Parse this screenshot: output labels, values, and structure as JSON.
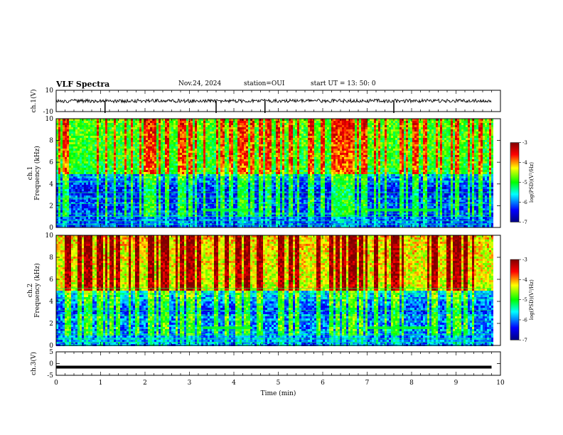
{
  "header": {
    "title": "VLF Spectra",
    "date": "Nov.24, 2024",
    "station": "station=OUI",
    "start_ut": "start  UT  =   13: 50: 0"
  },
  "chart_data": [
    {
      "type": "line",
      "panel": "ch1-waveform",
      "ylabel": "ch.1(V)",
      "ylim": [
        -10,
        10
      ],
      "yticks": [
        10,
        -10
      ],
      "xlim": [
        0,
        10
      ],
      "x": [
        0,
        1.1,
        1.6,
        3.6,
        4.7,
        7.6,
        9.8
      ],
      "y": [
        0,
        -2.5,
        0,
        -2.5,
        -2.5,
        -2.5,
        0
      ],
      "description_values": "baseline noise near 0 V with spikes at x≈1.1, 3.6, 4.7, 7.6 min"
    },
    {
      "type": "heatmap",
      "panel": "ch1-spectrogram",
      "ylabel": "ch.1\nFrequency (kHz)",
      "ylabel_line1": "ch.1",
      "ylabel_line2": "Frequency (kHz)",
      "ylim": [
        0,
        10
      ],
      "yticks": [
        0,
        2,
        4,
        6,
        8,
        10
      ],
      "xlim": [
        0,
        9.8
      ],
      "colorbar": {
        "label": "log(PSD)(V²/Hz)",
        "ticks": [
          -3,
          -4,
          -5,
          -6,
          -7
        ],
        "range": [
          -7,
          -3
        ]
      },
      "features": {
        "high_freq_level": -4.8,
        "low_freq_level": -6.5,
        "lines_khz": [
          0.3,
          0.6,
          1.0,
          1.3,
          2.2,
          2.7,
          3.2,
          4.2,
          4.7
        ],
        "emission_band_khz": 1.6,
        "emission_intervals_min": [
          [
            3.3,
            4.4
          ],
          [
            7.0,
            8.6
          ]
        ]
      }
    },
    {
      "type": "heatmap",
      "panel": "ch2-spectrogram",
      "ylabel": "ch.2\nFrequency (kHz)",
      "ylabel_line1": "ch.2",
      "ylabel_line2": "Frequency (kHz)",
      "ylim": [
        0,
        10
      ],
      "yticks": [
        0,
        2,
        4,
        6,
        8,
        10
      ],
      "xlim": [
        0,
        9.8
      ],
      "colorbar": {
        "label": "log(PSD)(V²/Hz)",
        "ticks": [
          -3,
          -4,
          -5,
          -6,
          -7
        ],
        "range": [
          -7,
          -3
        ]
      },
      "features": {
        "high_freq_level": -4.2,
        "low_freq_level": -6.3,
        "lines_khz": [
          0.3,
          0.6,
          1.0,
          1.3,
          2.2,
          2.7,
          3.2,
          4.2,
          4.7,
          5.2
        ],
        "emission_band_khz": 1.6,
        "emission_intervals_min": [
          [
            3.3,
            4.4
          ],
          [
            7.0,
            8.6
          ]
        ]
      }
    },
    {
      "type": "line",
      "panel": "ch3-waveform",
      "ylabel": "ch.3(V)",
      "ylim": [
        -5,
        5
      ],
      "yticks": [
        5,
        0,
        -5
      ],
      "xlim": [
        0,
        10
      ],
      "x": [
        0,
        9.8
      ],
      "y": [
        -1.5,
        -1.5
      ]
    }
  ],
  "xaxis": {
    "label": "Time (min)",
    "ticks": [
      "0",
      "1",
      "2",
      "3",
      "4",
      "5",
      "6",
      "7",
      "8",
      "9",
      "10"
    ],
    "range": [
      0,
      10
    ]
  },
  "colors": {
    "trace": "#000000",
    "colormap": [
      "#000080",
      "#0000ff",
      "#00ffff",
      "#00ff00",
      "#ffff00",
      "#ff0000",
      "#800000"
    ]
  }
}
